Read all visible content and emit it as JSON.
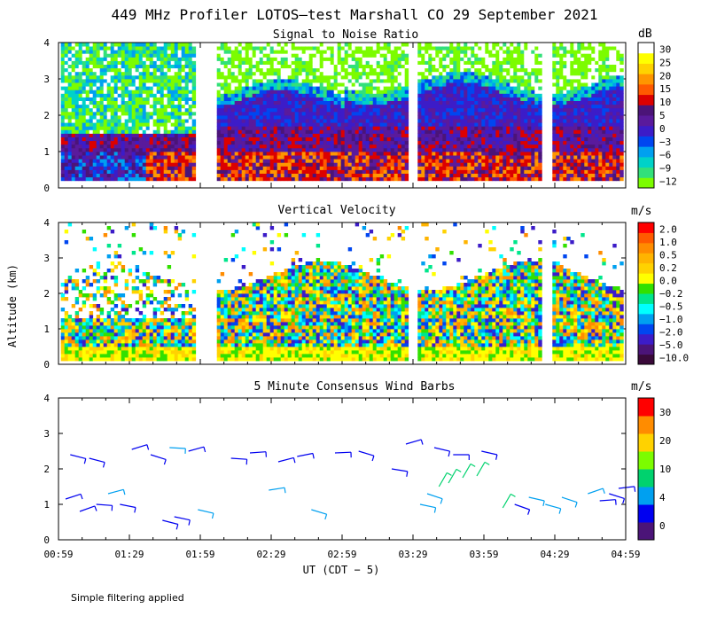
{
  "title": "449 MHz Profiler LOTOS—test Marshall CO 29 September 2021",
  "footnote": "Simple filtering applied",
  "colors": {
    "snr_scale": [
      "#7cfc00",
      "#32e07a",
      "#00d2c8",
      "#00a0f0",
      "#0046f0",
      "#3c1cc8",
      "#5a1a9c",
      "#4b1478",
      "#dc0000",
      "#ff5a00",
      "#ff9600",
      "#ffd200",
      "#ffff00",
      "#ffffff"
    ],
    "vv_scale": [
      "#3a0a3a",
      "#4b1478",
      "#3c1cc8",
      "#0046f0",
      "#00a0f0",
      "#00ffff",
      "#00e68c",
      "#32e000",
      "#ffff00",
      "#ffd200",
      "#ffb400",
      "#ff8c00",
      "#ff5a00",
      "#ff0000"
    ],
    "wind_scale": [
      "#4b1478",
      "#0000f0",
      "#00a0f0",
      "#00d26e",
      "#7cfc00",
      "#ffd200",
      "#ff8c00",
      "#ff0000"
    ]
  },
  "chart_data": [
    {
      "type": "heatmap",
      "title": "Signal to Noise Ratio",
      "xlabel": "",
      "ylabel": "",
      "ylim": [
        0,
        4
      ],
      "yticks": [
        "0",
        "1",
        "2",
        "3",
        "4"
      ],
      "colorbar_unit": "dB",
      "colorbar_labels": [
        "30",
        "25",
        "20",
        "15",
        "10",
        "5",
        "0",
        "−3",
        "−6",
        "−9",
        "−12"
      ],
      "data_segments_utc": [
        [
          "01:00",
          "01:57"
        ],
        [
          "02:06",
          "03:27"
        ],
        [
          "03:31",
          "04:22"
        ],
        [
          "04:28",
          "04:57"
        ]
      ],
      "description_values": {
        "top_of_data_km": 4.0,
        "bottom_of_data_km": 0.2
      }
    },
    {
      "type": "heatmap",
      "title": "Vertical Velocity",
      "xlabel": "",
      "ylabel": "Altitude (km)",
      "ylim": [
        0,
        4
      ],
      "yticks": [
        "0",
        "1",
        "2",
        "3",
        "4"
      ],
      "colorbar_unit": "m/s",
      "colorbar_labels": [
        "2.0",
        "1.0",
        "0.5",
        "0.2",
        "0.0",
        "−0.2",
        "−0.5",
        "−1.0",
        "−2.0",
        "−5.0",
        "−10.0"
      ],
      "data_segments_utc": [
        [
          "01:00",
          "01:57"
        ],
        [
          "02:06",
          "03:27"
        ],
        [
          "03:31",
          "04:22"
        ],
        [
          "04:28",
          "04:57"
        ]
      ]
    },
    {
      "type": "scatter",
      "title": "5 Minute Consensus Wind Barbs",
      "xlabel": "UT  (CDT − 5)",
      "ylabel": "",
      "ylim": [
        0,
        4
      ],
      "yticks": [
        "0",
        "1",
        "2",
        "3",
        "4"
      ],
      "xticks": [
        "00:59",
        "01:29",
        "01:59",
        "02:29",
        "02:59",
        "03:29",
        "03:59",
        "04:29",
        "04:59"
      ],
      "xrange_minutes": [
        59,
        299
      ],
      "colorbar_unit": "m/s",
      "colorbar_labels": [
        "30",
        "20",
        "10",
        "4",
        "0"
      ],
      "barbs": [
        {
          "t": 62,
          "h": 1.15,
          "s": 4
        },
        {
          "t": 68,
          "h": 0.8,
          "s": 4
        },
        {
          "t": 75,
          "h": 1.0,
          "s": 4
        },
        {
          "t": 80,
          "h": 1.3,
          "s": 6
        },
        {
          "t": 85,
          "h": 1.0,
          "s": 4
        },
        {
          "t": 103,
          "h": 0.55,
          "s": 4
        },
        {
          "t": 108,
          "h": 0.65,
          "s": 4
        },
        {
          "t": 118,
          "h": 0.85,
          "s": 6
        },
        {
          "t": 64,
          "h": 2.4,
          "s": 4
        },
        {
          "t": 72,
          "h": 2.3,
          "s": 4
        },
        {
          "t": 90,
          "h": 2.55,
          "s": 4
        },
        {
          "t": 98,
          "h": 2.4,
          "s": 4
        },
        {
          "t": 106,
          "h": 2.6,
          "s": 6
        },
        {
          "t": 114,
          "h": 2.5,
          "s": 4
        },
        {
          "t": 132,
          "h": 2.3,
          "s": 4
        },
        {
          "t": 140,
          "h": 2.45,
          "s": 4
        },
        {
          "t": 148,
          "h": 1.4,
          "s": 6
        },
        {
          "t": 166,
          "h": 0.85,
          "s": 6
        },
        {
          "t": 152,
          "h": 2.2,
          "s": 4
        },
        {
          "t": 160,
          "h": 2.35,
          "s": 4
        },
        {
          "t": 176,
          "h": 2.45,
          "s": 4
        },
        {
          "t": 186,
          "h": 2.5,
          "s": 4
        },
        {
          "t": 206,
          "h": 2.7,
          "s": 4
        },
        {
          "t": 218,
          "h": 2.6,
          "s": 4
        },
        {
          "t": 226,
          "h": 2.4,
          "s": 4
        },
        {
          "t": 238,
          "h": 2.5,
          "s": 4
        },
        {
          "t": 212,
          "h": 1.0,
          "s": 6
        },
        {
          "t": 215,
          "h": 1.3,
          "s": 6
        },
        {
          "t": 220,
          "h": 1.5,
          "s": 9
        },
        {
          "t": 224,
          "h": 1.6,
          "s": 9
        },
        {
          "t": 230,
          "h": 1.75,
          "s": 9
        },
        {
          "t": 236,
          "h": 1.8,
          "s": 9
        },
        {
          "t": 247,
          "h": 0.9,
          "s": 9
        },
        {
          "t": 252,
          "h": 1.0,
          "s": 4
        },
        {
          "t": 258,
          "h": 1.2,
          "s": 6
        },
        {
          "t": 265,
          "h": 1.0,
          "s": 6
        },
        {
          "t": 272,
          "h": 1.2,
          "s": 6
        },
        {
          "t": 283,
          "h": 1.3,
          "s": 6
        },
        {
          "t": 288,
          "h": 1.1,
          "s": 4
        },
        {
          "t": 292,
          "h": 1.3,
          "s": 4
        },
        {
          "t": 296,
          "h": 1.45,
          "s": 4
        },
        {
          "t": 200,
          "h": 2.0,
          "s": 4
        }
      ]
    }
  ]
}
